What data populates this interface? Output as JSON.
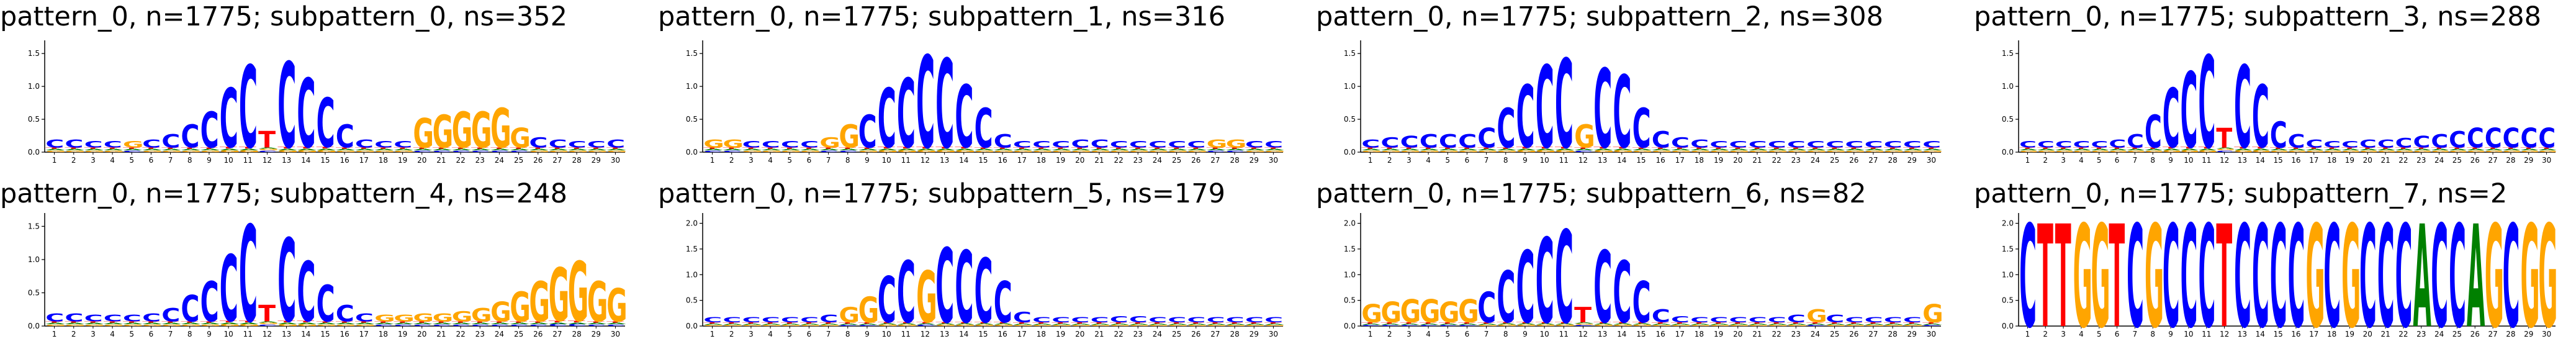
{
  "colors": {
    "A": "#008000",
    "C": "#0000ff",
    "G": "#ffa500",
    "T": "#ff0000"
  },
  "chart_data": [
    {
      "type": "sequence-logo",
      "title": "pattern_0, n=1775; subpattern_0, ns=352",
      "ylim": [
        0,
        1.7
      ],
      "yticks": [
        "0.0",
        "0.5",
        "1.0",
        "1.5"
      ],
      "positions": [
        1,
        2,
        3,
        4,
        5,
        6,
        7,
        8,
        9,
        10,
        11,
        12,
        13,
        14,
        15,
        16,
        17,
        18,
        19,
        20,
        21,
        22,
        23,
        24,
        25,
        26,
        27,
        28,
        29,
        30
      ],
      "dominant": [
        "C",
        "C",
        "C",
        "C",
        "G",
        "C",
        "C",
        "C",
        "C",
        "C",
        "C",
        "T",
        "C",
        "C",
        "C",
        "C",
        "C",
        "C",
        "C",
        "G",
        "G",
        "G",
        "G",
        "G",
        "G",
        "C",
        "C",
        "C",
        "C",
        "C"
      ],
      "dominant_height": [
        0.12,
        0.12,
        0.1,
        0.1,
        0.1,
        0.12,
        0.2,
        0.35,
        0.55,
        0.9,
        1.25,
        0.25,
        1.3,
        1.05,
        0.75,
        0.35,
        0.12,
        0.1,
        0.1,
        0.45,
        0.5,
        0.55,
        0.55,
        0.6,
        0.3,
        0.15,
        0.12,
        0.1,
        0.1,
        0.12
      ]
    },
    {
      "type": "sequence-logo",
      "title": "pattern_0, n=1775; subpattern_1, ns=316",
      "ylim": [
        0,
        1.7
      ],
      "yticks": [
        "0.0",
        "0.5",
        "1.0",
        "1.5"
      ],
      "positions": [
        1,
        2,
        3,
        4,
        5,
        6,
        7,
        8,
        9,
        10,
        11,
        12,
        13,
        14,
        15,
        16,
        17,
        18,
        19,
        20,
        21,
        22,
        23,
        24,
        25,
        26,
        27,
        28,
        29,
        30
      ],
      "dominant": [
        "G",
        "G",
        "C",
        "C",
        "C",
        "C",
        "G",
        "G",
        "C",
        "C",
        "C",
        "C",
        "C",
        "C",
        "C",
        "C",
        "C",
        "C",
        "C",
        "C",
        "C",
        "C",
        "C",
        "C",
        "C",
        "C",
        "G",
        "G",
        "C",
        "C"
      ],
      "dominant_height": [
        0.12,
        0.12,
        0.1,
        0.1,
        0.1,
        0.1,
        0.15,
        0.35,
        0.5,
        0.9,
        1.05,
        1.4,
        1.35,
        0.95,
        0.6,
        0.2,
        0.1,
        0.1,
        0.1,
        0.12,
        0.12,
        0.1,
        0.1,
        0.1,
        0.1,
        0.1,
        0.12,
        0.12,
        0.1,
        0.1
      ]
    },
    {
      "type": "sequence-logo",
      "title": "pattern_0, n=1775; subpattern_2, ns=308",
      "ylim": [
        0,
        1.7
      ],
      "yticks": [
        "0.0",
        "0.5",
        "1.0",
        "1.5"
      ],
      "positions": [
        1,
        2,
        3,
        4,
        5,
        6,
        7,
        8,
        9,
        10,
        11,
        12,
        13,
        14,
        15,
        16,
        17,
        18,
        19,
        20,
        21,
        22,
        23,
        24,
        25,
        26,
        27,
        28,
        29,
        30
      ],
      "dominant": [
        "C",
        "C",
        "C",
        "C",
        "C",
        "C",
        "C",
        "C",
        "C",
        "C",
        "C",
        "G",
        "C",
        "C",
        "C",
        "C",
        "C",
        "C",
        "C",
        "C",
        "C",
        "C",
        "C",
        "C",
        "C",
        "C",
        "C",
        "C",
        "C",
        "C"
      ],
      "dominant_height": [
        0.12,
        0.15,
        0.18,
        0.2,
        0.2,
        0.2,
        0.3,
        0.6,
        0.95,
        1.25,
        1.35,
        0.35,
        1.2,
        1.1,
        0.6,
        0.25,
        0.15,
        0.12,
        0.1,
        0.1,
        0.1,
        0.1,
        0.1,
        0.1,
        0.1,
        0.1,
        0.1,
        0.1,
        0.1,
        0.1
      ]
    },
    {
      "type": "sequence-logo",
      "title": "pattern_0, n=1775; subpattern_3, ns=288",
      "ylim": [
        0,
        1.7
      ],
      "yticks": [
        "0.0",
        "0.5",
        "1.0",
        "1.5"
      ],
      "positions": [
        1,
        2,
        3,
        4,
        5,
        6,
        7,
        8,
        9,
        10,
        11,
        12,
        13,
        14,
        15,
        16,
        17,
        18,
        19,
        20,
        21,
        22,
        23,
        24,
        25,
        26,
        27,
        28,
        29,
        30
      ],
      "dominant": [
        "C",
        "C",
        "C",
        "C",
        "C",
        "C",
        "C",
        "C",
        "C",
        "C",
        "C",
        "T",
        "C",
        "C",
        "C",
        "C",
        "C",
        "C",
        "C",
        "C",
        "C",
        "C",
        "C",
        "C",
        "C",
        "C",
        "C",
        "C",
        "C",
        "C"
      ],
      "dominant_height": [
        0.1,
        0.1,
        0.1,
        0.1,
        0.1,
        0.12,
        0.2,
        0.5,
        0.9,
        1.15,
        1.4,
        0.3,
        1.25,
        0.95,
        0.4,
        0.2,
        0.12,
        0.1,
        0.1,
        0.12,
        0.12,
        0.15,
        0.18,
        0.2,
        0.25,
        0.3,
        0.3,
        0.3,
        0.3,
        0.3
      ]
    },
    {
      "type": "sequence-logo",
      "title": "pattern_0, n=1775; subpattern_4, ns=248",
      "ylim": [
        0,
        1.7
      ],
      "yticks": [
        "0.0",
        "0.5",
        "1.0",
        "1.5"
      ],
      "positions": [
        1,
        2,
        3,
        4,
        5,
        6,
        7,
        8,
        9,
        10,
        11,
        12,
        13,
        14,
        15,
        16,
        17,
        18,
        19,
        20,
        21,
        22,
        23,
        24,
        25,
        26,
        27,
        28,
        29,
        30
      ],
      "dominant": [
        "C",
        "C",
        "C",
        "C",
        "C",
        "C",
        "C",
        "C",
        "C",
        "C",
        "C",
        "T",
        "C",
        "C",
        "C",
        "C",
        "C",
        "G",
        "G",
        "G",
        "G",
        "G",
        "G",
        "G",
        "G",
        "G",
        "G",
        "G",
        "G",
        "G"
      ],
      "dominant_height": [
        0.12,
        0.12,
        0.1,
        0.1,
        0.1,
        0.12,
        0.2,
        0.4,
        0.6,
        1.0,
        1.45,
        0.25,
        1.25,
        0.9,
        0.55,
        0.25,
        0.12,
        0.1,
        0.1,
        0.12,
        0.12,
        0.15,
        0.2,
        0.3,
        0.45,
        0.6,
        0.8,
        0.9,
        0.6,
        0.5
      ]
    },
    {
      "type": "sequence-logo",
      "title": "pattern_0, n=1775; subpattern_5, ns=179",
      "ylim": [
        0,
        2.2
      ],
      "yticks": [
        "0.0",
        "0.5",
        "1.0",
        "1.5",
        "2.0"
      ],
      "positions": [
        1,
        2,
        3,
        4,
        5,
        6,
        7,
        8,
        9,
        10,
        11,
        12,
        13,
        14,
        15,
        16,
        17,
        18,
        19,
        20,
        21,
        22,
        23,
        24,
        25,
        26,
        27,
        28,
        29,
        30
      ],
      "dominant": [
        "C",
        "C",
        "C",
        "C",
        "C",
        "C",
        "C",
        "G",
        "G",
        "C",
        "C",
        "G",
        "C",
        "C",
        "C",
        "C",
        "C",
        "C",
        "C",
        "C",
        "C",
        "C",
        "C",
        "C",
        "C",
        "C",
        "C",
        "C",
        "C",
        "C"
      ],
      "dominant_height": [
        0.1,
        0.1,
        0.1,
        0.1,
        0.1,
        0.1,
        0.15,
        0.3,
        0.5,
        0.9,
        1.2,
        1.0,
        1.45,
        1.4,
        1.25,
        0.8,
        0.2,
        0.1,
        0.1,
        0.1,
        0.1,
        0.12,
        0.12,
        0.1,
        0.1,
        0.1,
        0.1,
        0.1,
        0.1,
        0.1
      ]
    },
    {
      "type": "sequence-logo",
      "title": "pattern_0, n=1775; subpattern_6, ns=82",
      "ylim": [
        0,
        2.2
      ],
      "yticks": [
        "0.0",
        "0.5",
        "1.0",
        "1.5",
        "2.0"
      ],
      "positions": [
        1,
        2,
        3,
        4,
        5,
        6,
        7,
        8,
        9,
        10,
        11,
        12,
        13,
        14,
        15,
        16,
        17,
        18,
        19,
        20,
        21,
        22,
        23,
        24,
        25,
        26,
        27,
        28,
        29,
        30
      ],
      "dominant": [
        "G",
        "G",
        "G",
        "G",
        "G",
        "G",
        "C",
        "C",
        "C",
        "C",
        "C",
        "T",
        "C",
        "C",
        "C",
        "C",
        "C",
        "C",
        "C",
        "C",
        "C",
        "C",
        "C",
        "G",
        "C",
        "C",
        "C",
        "C",
        "C",
        "G"
      ],
      "dominant_height": [
        0.35,
        0.4,
        0.45,
        0.45,
        0.4,
        0.45,
        0.6,
        1.0,
        1.4,
        1.65,
        1.8,
        0.3,
        1.4,
        1.2,
        0.8,
        0.25,
        0.12,
        0.1,
        0.1,
        0.1,
        0.1,
        0.1,
        0.15,
        0.25,
        0.15,
        0.1,
        0.1,
        0.1,
        0.1,
        0.35
      ]
    },
    {
      "type": "sequence-logo",
      "title": "pattern_0, n=1775; subpattern_7, ns=2",
      "ylim": [
        0,
        2.2
      ],
      "yticks": [
        "0.0",
        "0.5",
        "1.0",
        "1.5",
        "2.0"
      ],
      "positions": [
        1,
        2,
        3,
        4,
        5,
        6,
        7,
        8,
        9,
        10,
        11,
        12,
        13,
        14,
        15,
        16,
        17,
        18,
        19,
        20,
        21,
        22,
        23,
        24,
        25,
        26,
        27,
        28,
        29,
        30
      ],
      "dominant": [
        "C",
        "T",
        "T",
        "G",
        "G",
        "T",
        "C",
        "G",
        "C",
        "C",
        "C",
        "T",
        "C",
        "C",
        "C",
        "C",
        "G",
        "C",
        "G",
        "C",
        "C",
        "C",
        "A",
        "C",
        "C",
        "A",
        "G",
        "C",
        "G",
        "G"
      ],
      "dominant_height": [
        2.0,
        2.0,
        2.0,
        2.0,
        2.0,
        2.0,
        2.0,
        2.0,
        2.0,
        2.0,
        2.0,
        2.0,
        2.0,
        2.0,
        2.0,
        2.0,
        2.0,
        2.0,
        2.0,
        2.0,
        2.0,
        2.0,
        2.0,
        2.0,
        2.0,
        2.0,
        2.0,
        2.0,
        2.0,
        2.0
      ]
    }
  ]
}
